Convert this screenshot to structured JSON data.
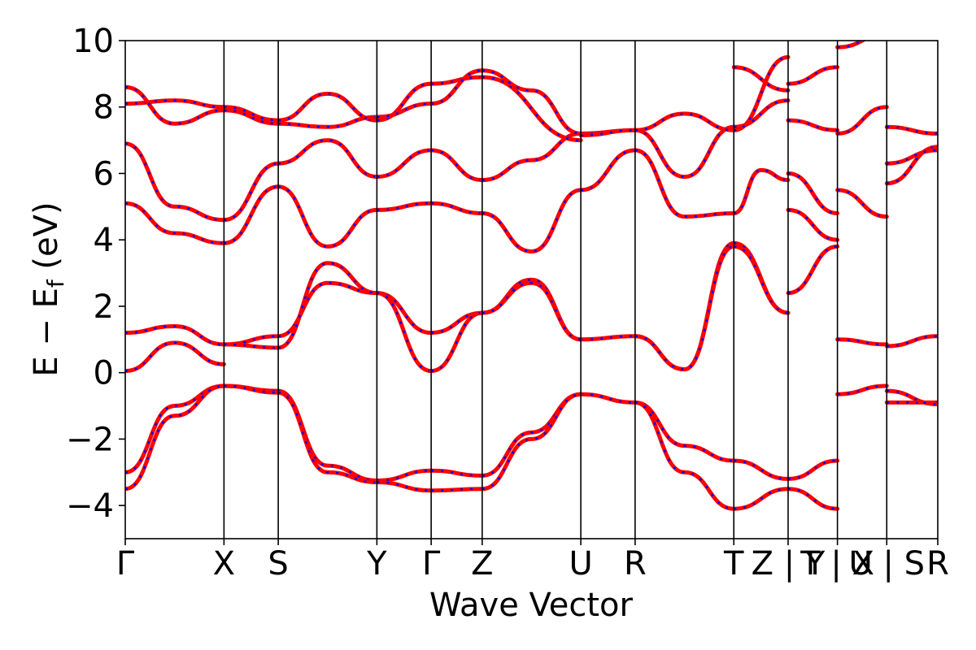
{
  "chart_data": {
    "type": "line",
    "title": "",
    "xlabel": "Wave Vector",
    "ylabel": "E − E_f (eV)",
    "ylabel_main": "E − E",
    "ylabel_sub": "f",
    "ylabel_unit": " (eV)",
    "ylim": [
      -5,
      10
    ],
    "yticks": [
      -4,
      -2,
      0,
      2,
      4,
      6,
      8,
      10
    ],
    "ytick_labels": [
      "−4",
      "−2",
      "0",
      "2",
      "4",
      "6",
      "8",
      "10"
    ],
    "xlim": [
      0,
      1
    ],
    "grid": false,
    "legend": "none",
    "colors": {
      "solid": "#ff0000",
      "dashed": "#0000ff",
      "axis": "#000000"
    },
    "k_points": [
      {
        "label": "Γ",
        "x": 0.0
      },
      {
        "label": "X",
        "x": 0.1215
      },
      {
        "label": "S",
        "x": 0.1883
      },
      {
        "label": "Y",
        "x": 0.3097
      },
      {
        "label": "Γ",
        "x": 0.3765
      },
      {
        "label": "Z",
        "x": 0.4393
      },
      {
        "label": "U",
        "x": 0.5607
      },
      {
        "label": "R",
        "x": 0.6275
      },
      {
        "label": "T",
        "x": 0.749
      },
      {
        "label": "Z | Y",
        "x": 0.8158
      },
      {
        "label": "T | X",
        "x": 0.8765
      },
      {
        "label": "U | S",
        "x": 0.9372
      },
      {
        "label": "R",
        "x": 1.0
      }
    ],
    "k_label_text": [
      "Γ",
      "X",
      "S",
      "Y",
      "Γ",
      "Z",
      "U",
      "R",
      "T",
      "Z | Y",
      "T | X",
      "U | S",
      "R"
    ],
    "series": [
      {
        "style": "solid",
        "segments": [
          {
            "from": 0,
            "to": 1,
            "values": [
              0.05,
              0.9,
              0.25
            ]
          },
          {
            "from": 1,
            "to": 2,
            "values": [
              0.85,
              1.1
            ]
          },
          {
            "from": 2,
            "to": 3,
            "values": [
              1.1,
              2.7,
              2.4
            ]
          },
          {
            "from": 3,
            "to": 4,
            "values": [
              2.4,
              1.2
            ]
          },
          {
            "from": 4,
            "to": 5,
            "values": [
              1.2,
              1.8
            ]
          },
          {
            "from": 5,
            "to": 6,
            "values": [
              1.8,
              2.8,
              1.0
            ]
          },
          {
            "from": 6,
            "to": 7,
            "values": [
              1.0,
              1.1
            ]
          },
          {
            "from": 7,
            "to": 8,
            "values": [
              1.1,
              0.1,
              3.9
            ]
          },
          {
            "from": 8,
            "to": 9,
            "values": [
              3.9,
              1.8
            ]
          },
          {
            "from": 9,
            "to": 10,
            "values": [
              2.4,
              3.8
            ]
          },
          {
            "from": 10,
            "to": 11,
            "values": [
              1.0,
              0.85
            ]
          },
          {
            "from": 11,
            "to": 12,
            "values": [
              0.8,
              1.1
            ]
          }
        ]
      },
      {
        "style": "solid",
        "segments": [
          {
            "from": 0,
            "to": 1,
            "values": [
              1.2,
              1.4,
              0.85
            ]
          },
          {
            "from": 1,
            "to": 2,
            "values": [
              0.85,
              0.75
            ]
          },
          {
            "from": 2,
            "to": 3,
            "values": [
              0.75,
              3.3,
              2.4
            ]
          },
          {
            "from": 3,
            "to": 4,
            "values": [
              2.4,
              0.05
            ]
          },
          {
            "from": 4,
            "to": 5,
            "values": [
              0.05,
              1.8
            ]
          },
          {
            "from": 5,
            "to": 6,
            "values": [
              1.8,
              2.7,
              1.0
            ]
          },
          {
            "from": 7,
            "to": 8,
            "values": [
              1.1,
              0.1,
              3.8
            ]
          },
          {
            "from": 8,
            "to": 9,
            "values": [
              3.8,
              1.8
            ]
          }
        ]
      },
      {
        "style": "solid",
        "segments": [
          {
            "from": 0,
            "to": 1,
            "values": [
              -3.0,
              -1.0,
              -0.4
            ]
          },
          {
            "from": 1,
            "to": 2,
            "values": [
              -0.4,
              -0.55
            ]
          },
          {
            "from": 2,
            "to": 3,
            "values": [
              -0.55,
              -2.8,
              -3.25
            ]
          },
          {
            "from": 3,
            "to": 4,
            "values": [
              -3.25,
              -2.95
            ]
          },
          {
            "from": 4,
            "to": 5,
            "values": [
              -2.95,
              -3.1
            ]
          },
          {
            "from": 5,
            "to": 6,
            "values": [
              -3.1,
              -1.8,
              -0.65
            ]
          },
          {
            "from": 6,
            "to": 7,
            "values": [
              -0.65,
              -0.9
            ]
          },
          {
            "from": 7,
            "to": 8,
            "values": [
              -0.9,
              -2.2,
              -2.65
            ]
          },
          {
            "from": 8,
            "to": 9,
            "values": [
              -2.65,
              -3.2
            ]
          },
          {
            "from": 9,
            "to": 10,
            "values": [
              -3.2,
              -2.65
            ]
          },
          {
            "from": 10,
            "to": 11,
            "values": [
              -0.65,
              -0.4
            ]
          },
          {
            "from": 11,
            "to": 12,
            "values": [
              -0.9,
              -0.9
            ]
          }
        ]
      },
      {
        "style": "solid",
        "segments": [
          {
            "from": 0,
            "to": 1,
            "values": [
              -3.5,
              -1.3,
              -0.4
            ]
          },
          {
            "from": 1,
            "to": 2,
            "values": [
              -0.4,
              -0.6
            ]
          },
          {
            "from": 2,
            "to": 3,
            "values": [
              -0.6,
              -3.0,
              -3.3
            ]
          },
          {
            "from": 3,
            "to": 4,
            "values": [
              -3.3,
              -3.55
            ]
          },
          {
            "from": 4,
            "to": 5,
            "values": [
              -3.55,
              -3.5
            ]
          },
          {
            "from": 5,
            "to": 6,
            "values": [
              -3.5,
              -2.0,
              -0.65
            ]
          },
          {
            "from": 7,
            "to": 8,
            "values": [
              -0.9,
              -3.0,
              -4.1
            ]
          },
          {
            "from": 8,
            "to": 9,
            "values": [
              -4.1,
              -3.5
            ]
          },
          {
            "from": 9,
            "to": 10,
            "values": [
              -3.5,
              -4.1
            ]
          },
          {
            "from": 11,
            "to": 12,
            "values": [
              -0.55,
              -0.95
            ]
          }
        ]
      },
      {
        "style": "solid",
        "segments": [
          {
            "from": 0,
            "to": 1,
            "values": [
              5.1,
              4.2,
              3.9
            ]
          },
          {
            "from": 1,
            "to": 2,
            "values": [
              3.9,
              5.6
            ]
          },
          {
            "from": 2,
            "to": 3,
            "values": [
              5.6,
              3.8,
              4.9
            ]
          },
          {
            "from": 3,
            "to": 4,
            "values": [
              4.9,
              5.1
            ]
          },
          {
            "from": 4,
            "to": 5,
            "values": [
              5.1,
              4.8
            ]
          },
          {
            "from": 5,
            "to": 6,
            "values": [
              4.8,
              3.65,
              5.5
            ]
          },
          {
            "from": 6,
            "to": 7,
            "values": [
              5.5,
              6.7
            ]
          },
          {
            "from": 7,
            "to": 8,
            "values": [
              6.7,
              4.7,
              4.8
            ]
          },
          {
            "from": 8,
            "to": 9,
            "values": [
              4.8,
              6.1,
              5.8
            ]
          },
          {
            "from": 9,
            "to": 10,
            "values": [
              4.9,
              4.0
            ]
          },
          {
            "from": 10,
            "to": 11,
            "values": [
              5.5,
              4.7
            ]
          },
          {
            "from": 11,
            "to": 12,
            "values": [
              5.7,
              6.8
            ]
          }
        ]
      },
      {
        "style": "solid",
        "segments": [
          {
            "from": 0,
            "to": 1,
            "values": [
              6.9,
              5.0,
              4.6
            ]
          },
          {
            "from": 1,
            "to": 2,
            "values": [
              4.6,
              6.3
            ]
          },
          {
            "from": 2,
            "to": 3,
            "values": [
              6.3,
              7.0,
              5.9
            ]
          },
          {
            "from": 3,
            "to": 4,
            "values": [
              5.9,
              6.7
            ]
          },
          {
            "from": 4,
            "to": 5,
            "values": [
              6.7,
              5.8
            ]
          },
          {
            "from": 5,
            "to": 6,
            "values": [
              5.8,
              6.4,
              7.2
            ]
          },
          {
            "from": 6,
            "to": 7,
            "values": [
              7.2,
              7.3
            ]
          },
          {
            "from": 7,
            "to": 8,
            "values": [
              7.3,
              5.9,
              7.4
            ]
          },
          {
            "from": 8,
            "to": 9,
            "values": [
              7.4,
              8.2
            ]
          },
          {
            "from": 9,
            "to": 10,
            "values": [
              6.0,
              4.8
            ]
          },
          {
            "from": 10,
            "to": 11,
            "values": [
              7.2,
              8.0
            ]
          },
          {
            "from": 11,
            "to": 12,
            "values": [
              6.3,
              6.7
            ]
          }
        ]
      },
      {
        "style": "solid",
        "segments": [
          {
            "from": 0,
            "to": 1,
            "values": [
              8.1,
              8.2,
              8.0
            ]
          },
          {
            "from": 1,
            "to": 2,
            "values": [
              8.0,
              7.6
            ]
          },
          {
            "from": 2,
            "to": 3,
            "values": [
              7.6,
              8.4,
              7.6
            ]
          },
          {
            "from": 3,
            "to": 4,
            "values": [
              7.6,
              8.7
            ]
          },
          {
            "from": 4,
            "to": 5,
            "values": [
              8.7,
              8.9
            ]
          },
          {
            "from": 5,
            "to": 6,
            "values": [
              8.9,
              7.0
            ]
          },
          {
            "from": 6,
            "to": 7,
            "values": [
              7.15,
              7.3
            ]
          },
          {
            "from": 7,
            "to": 8,
            "values": [
              7.3,
              7.8,
              7.3
            ]
          },
          {
            "from": 8,
            "to": 9,
            "values": [
              7.3,
              9.5
            ]
          },
          {
            "from": 9,
            "to": 10,
            "values": [
              7.6,
              7.3
            ]
          },
          {
            "from": 10,
            "to": 11,
            "values": [
              9.8,
              10.2
            ]
          },
          {
            "from": 11,
            "to": 12,
            "values": [
              7.4,
              7.2
            ]
          }
        ]
      },
      {
        "style": "solid",
        "segments": [
          {
            "from": 0,
            "to": 1,
            "values": [
              8.6,
              7.5,
              7.9
            ]
          },
          {
            "from": 1,
            "to": 2,
            "values": [
              7.9,
              7.5
            ]
          },
          {
            "from": 2,
            "to": 3,
            "values": [
              7.5,
              7.4,
              7.7
            ]
          },
          {
            "from": 3,
            "to": 4,
            "values": [
              7.7,
              8.1
            ]
          },
          {
            "from": 4,
            "to": 5,
            "values": [
              8.1,
              9.1
            ]
          },
          {
            "from": 5,
            "to": 6,
            "values": [
              9.1,
              8.5,
              7.2
            ]
          },
          {
            "from": 8,
            "to": 9,
            "values": [
              9.2,
              8.5
            ]
          },
          {
            "from": 9,
            "to": 10,
            "values": [
              8.7,
              9.2
            ]
          }
        ]
      }
    ]
  }
}
